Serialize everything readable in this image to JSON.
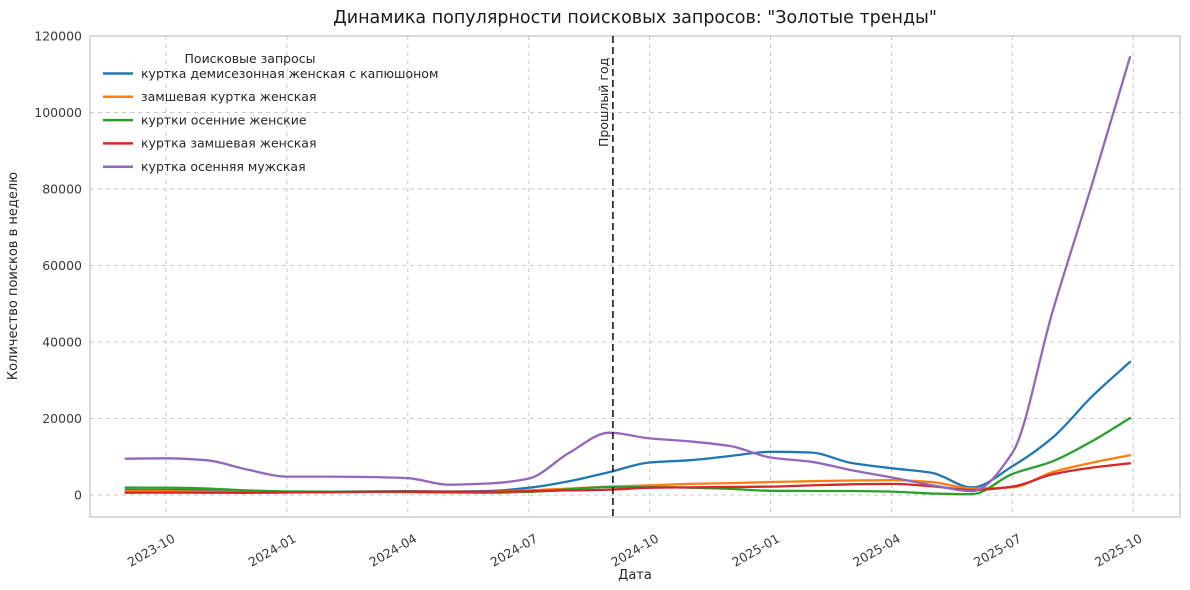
{
  "chart_data": {
    "type": "line",
    "title": "Динамика популярности поисковых запросов: \"Золотые тренды\"",
    "xlabel": "Дата",
    "ylabel": "Количество поисков в неделю",
    "legend_title": "Поисковые запросы",
    "legend_position": "upper left",
    "grid": "dashed",
    "ylim": [
      -5750,
      120000
    ],
    "yticks": [
      0,
      20000,
      40000,
      60000,
      80000,
      100000,
      120000
    ],
    "xticks": [
      {
        "label": "2023-10",
        "month": 0
      },
      {
        "label": "2024-01",
        "month": 3
      },
      {
        "label": "2024-04",
        "month": 6
      },
      {
        "label": "2024-07",
        "month": 9
      },
      {
        "label": "2024-10",
        "month": 12
      },
      {
        "label": "2025-01",
        "month": 15
      },
      {
        "label": "2025-04",
        "month": 18
      },
      {
        "label": "2025-07",
        "month": 21
      },
      {
        "label": "2025-10",
        "month": 24
      }
    ],
    "x_dates": [
      "2023-09",
      "2023-10",
      "2023-11",
      "2023-12",
      "2024-01",
      "2024-02",
      "2024-03",
      "2024-04",
      "2024-05",
      "2024-06",
      "2024-07",
      "2024-08",
      "2024-09",
      "2024-10",
      "2024-11",
      "2024-12",
      "2025-01",
      "2025-02",
      "2025-03",
      "2025-04",
      "2025-05",
      "2025-06",
      "2025-07",
      "2025-08",
      "2025-09",
      "2025-09-29"
    ],
    "x_months_since_2023_10": [
      -1,
      0,
      1,
      2,
      3,
      4,
      5,
      6,
      7,
      8,
      9,
      10,
      11,
      12,
      13,
      14,
      15,
      16,
      17,
      18,
      19,
      20,
      21,
      22,
      23,
      23.92
    ],
    "annotation": {
      "label": "Прошлый год",
      "x_month": 11.09,
      "date": "2024-09-04",
      "style": "vertical-dashed-line"
    },
    "series": [
      {
        "name": "куртка демисезонная женская с капюшоном",
        "color": "#1f77b4",
        "values": [
          1350,
          1300,
          1250,
          1000,
          900,
          900,
          950,
          1000,
          950,
          1050,
          1900,
          3600,
          6000,
          8500,
          9100,
          10200,
          11300,
          11100,
          8400,
          7000,
          5800,
          2000,
          7500,
          15000,
          26000,
          34800
        ]
      },
      {
        "name": "замшевая куртка женская",
        "color": "#ff7f0e",
        "values": [
          1050,
          1000,
          900,
          800,
          750,
          780,
          820,
          870,
          850,
          900,
          1200,
          1700,
          2200,
          2500,
          2900,
          3100,
          3400,
          3600,
          3800,
          3900,
          3400,
          1700,
          2000,
          6000,
          8500,
          10400
        ]
      },
      {
        "name": "куртки осенние женские",
        "color": "#2ca02c",
        "values": [
          1950,
          1900,
          1700,
          1200,
          950,
          850,
          800,
          750,
          650,
          600,
          800,
          1500,
          2100,
          2100,
          1900,
          1600,
          1100,
          1050,
          1050,
          900,
          400,
          200,
          5500,
          8800,
          14200,
          20100
        ]
      },
      {
        "name": "куртка замшевая женская",
        "color": "#d62728",
        "values": [
          600,
          620,
          600,
          580,
          650,
          700,
          800,
          870,
          820,
          870,
          1000,
          1200,
          1400,
          1900,
          2000,
          2100,
          2200,
          2500,
          2800,
          2900,
          2300,
          1300,
          2200,
          5400,
          7200,
          8300
        ]
      },
      {
        "name": "куртка осенняя мужская",
        "color": "#9467bd",
        "values": [
          9500,
          9600,
          9100,
          6700,
          4800,
          4800,
          4700,
          4400,
          2700,
          3000,
          4300,
          11000,
          16300,
          14800,
          14000,
          12800,
          9800,
          8700,
          6500,
          4600,
          2600,
          1000,
          11000,
          48000,
          82000,
          114500
        ]
      }
    ],
    "style": {
      "background": "#ffffff",
      "grid_color": "#c9c9c9",
      "spine_color": "#c0c0c0",
      "text_color": "#3a3a3a",
      "title_color": "#1a1a1a",
      "annotation_line_color": "#1a1a1a"
    }
  }
}
